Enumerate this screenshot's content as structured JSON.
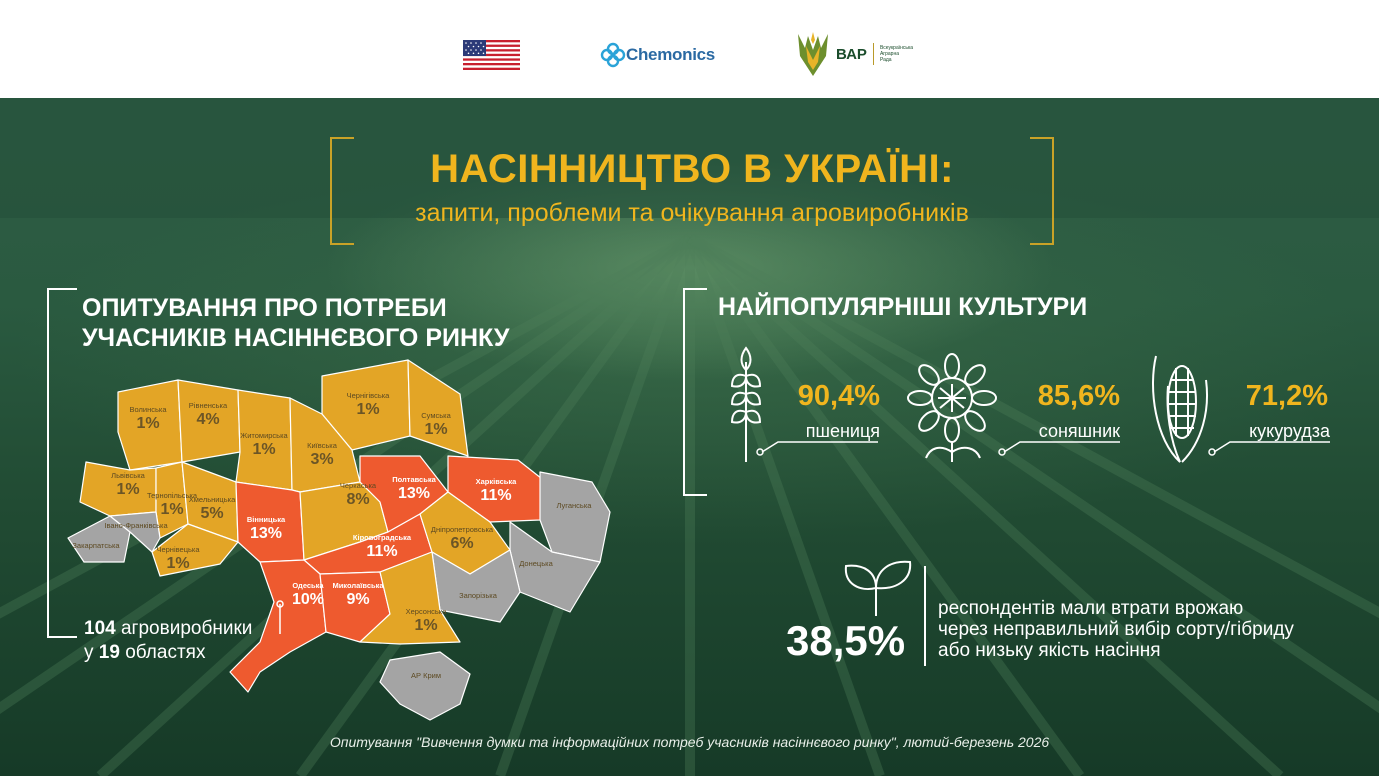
{
  "header": {
    "chemonics_label": "Chemonics",
    "vap_label": "ВАР",
    "vap_small": "Всеукраїнська Аграрна Рада"
  },
  "title": {
    "main": "НАСІННИЦТВО В УКРАЇНІ:",
    "sub": "запити, проблеми та очікування агровиробників"
  },
  "survey": {
    "title_line1": "ОПИТУВАННЯ ПРО ПОТРЕБИ",
    "title_line2": "УЧАСНИКІВ НАСІННЄВОГО РИНКУ",
    "count": "104",
    "count_suffix": " агровиробники",
    "regions_prefix": "у ",
    "regions_count": "19",
    "regions_suffix": " областях"
  },
  "map_regions": [
    {
      "name": "Волинська",
      "pct": "1%",
      "level": "mid"
    },
    {
      "name": "Рівненська",
      "pct": "4%",
      "level": "mid"
    },
    {
      "name": "Житомирська",
      "pct": "1%",
      "level": "mid"
    },
    {
      "name": "Чернігівська",
      "pct": "1%",
      "level": "mid"
    },
    {
      "name": "Сумська",
      "pct": "1%",
      "level": "mid"
    },
    {
      "name": "Київська",
      "pct": "3%",
      "level": "mid"
    },
    {
      "name": "Львівська",
      "pct": "1%",
      "level": "mid"
    },
    {
      "name": "Тернопільська",
      "pct": "1%",
      "level": "mid"
    },
    {
      "name": "Хмельницька",
      "pct": "5%",
      "level": "mid"
    },
    {
      "name": "Вінницька",
      "pct": "13%",
      "level": "high"
    },
    {
      "name": "Черкаська",
      "pct": "8%",
      "level": "mid"
    },
    {
      "name": "Полтавська",
      "pct": "13%",
      "level": "high"
    },
    {
      "name": "Харківська",
      "pct": "11%",
      "level": "high"
    },
    {
      "name": "Луганська",
      "pct": "",
      "level": "none"
    },
    {
      "name": "Закарпатська",
      "pct": "",
      "level": "none"
    },
    {
      "name": "Івано-Франківська",
      "pct": "",
      "level": "none"
    },
    {
      "name": "Чернівецька",
      "pct": "1%",
      "level": "mid"
    },
    {
      "name": "Кіровоградська",
      "pct": "11%",
      "level": "high"
    },
    {
      "name": "Дніпропетровська",
      "pct": "6%",
      "level": "mid"
    },
    {
      "name": "Донецька",
      "pct": "",
      "level": "none"
    },
    {
      "name": "Одеська",
      "pct": "10%",
      "level": "high"
    },
    {
      "name": "Миколаївська",
      "pct": "9%",
      "level": "high"
    },
    {
      "name": "Запорізька",
      "pct": "",
      "level": "none"
    },
    {
      "name": "Херсонська",
      "pct": "1%",
      "level": "mid"
    },
    {
      "name": "АР Крим",
      "pct": "",
      "level": "none"
    }
  ],
  "crops": {
    "title": "НАЙПОПУЛЯРНІШІ КУЛЬТУРИ",
    "items": [
      {
        "icon": "wheat-icon",
        "pct": "90,4%",
        "name": "пшениця"
      },
      {
        "icon": "sunflower-icon",
        "pct": "85,6%",
        "name": "соняшник"
      },
      {
        "icon": "corn-icon",
        "pct": "71,2%",
        "name": "кукурудза"
      }
    ]
  },
  "losses": {
    "icon": "sprout-icon",
    "pct": "38,5%",
    "line1": "респондентів мали втрати врожаю",
    "line2": "через неправильний вибір сорту/гібриду",
    "line3": "або низьку якість насіння"
  },
  "footnote": "Опитування \"Вивчення думки та інформаційних потреб учасників насіннєвого ринку\", лютий-березень 2026",
  "colors": {
    "accent_gold": "#f0b51e",
    "region_mid": "#e3a526",
    "region_high": "#ee5a2f",
    "region_none": "#a4a4a4",
    "bg_green": "#214b33"
  }
}
